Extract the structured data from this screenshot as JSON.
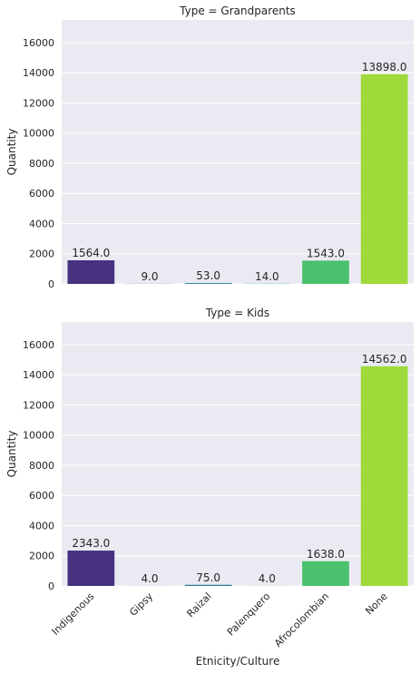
{
  "chart_data": {
    "type": "bar",
    "xlabel": "Etnicity/Culture",
    "ylabel": "Quantity",
    "ylim": [
      0,
      17500
    ],
    "yticks": [
      0,
      2000,
      4000,
      6000,
      8000,
      10000,
      12000,
      14000,
      16000
    ],
    "grid": true,
    "categories": [
      "Indigenous",
      "Gipsy",
      "Raizal",
      "Palenquero",
      "Afrocolombian",
      "None"
    ],
    "colors": [
      "#46327e",
      "#365c8d",
      "#277f8e",
      "#1fa187",
      "#4ac16d",
      "#9fda3a"
    ],
    "panels": [
      {
        "title": "Type = Grandparents",
        "values": [
          1564.0,
          9.0,
          53.0,
          14.0,
          1543.0,
          13898.0
        ],
        "labels": [
          "1564.0",
          "9.0",
          "53.0",
          "14.0",
          "1543.0",
          "13898.0"
        ]
      },
      {
        "title": "Type = Kids",
        "values": [
          2343.0,
          4.0,
          75.0,
          4.0,
          1638.0,
          14562.0
        ],
        "labels": [
          "2343.0",
          "4.0",
          "75.0",
          "4.0",
          "1638.0",
          "14562.0"
        ]
      }
    ]
  }
}
